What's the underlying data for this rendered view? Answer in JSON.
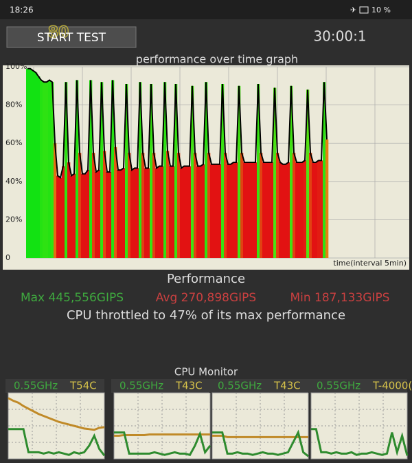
{
  "status_bar": {
    "time": "18:26",
    "battery": "10 %"
  },
  "controls": {
    "button": "START TEST",
    "badge": "80",
    "timer": "30:00:1"
  },
  "chart_data": {
    "type": "area-line",
    "title": "performance over time graph",
    "x_label": "time(interval 5min)",
    "color": "#000000",
    "values": [
      99,
      99,
      98,
      97,
      95,
      93,
      92,
      92,
      93,
      92,
      60,
      43,
      42,
      48,
      92,
      50,
      43,
      44,
      93,
      55,
      44,
      44,
      46,
      93,
      55,
      45,
      46,
      92,
      56,
      45,
      45,
      93,
      58,
      46,
      46,
      47,
      91,
      55,
      46,
      47,
      47,
      92,
      55,
      47,
      47,
      91,
      55,
      47,
      48,
      48,
      92,
      56,
      48,
      48,
      91,
      55,
      47,
      48,
      48,
      48,
      90,
      55,
      48,
      48,
      49,
      92,
      55,
      49,
      49,
      49,
      49,
      91,
      55,
      49,
      49,
      50,
      50,
      90,
      55,
      50,
      50,
      50,
      50,
      50,
      91,
      55,
      50,
      50,
      50,
      50,
      89,
      55,
      50,
      49,
      49,
      50,
      90,
      55,
      50,
      50,
      50,
      51,
      88,
      55,
      50,
      50,
      51,
      51,
      92,
      62
    ],
    "ylim": [
      0,
      100
    ],
    "yticks": [
      0,
      {
        "value": 20,
        "label": "20%"
      },
      {
        "value": 40,
        "label": "40%"
      },
      {
        "value": 60,
        "label": "60%"
      },
      {
        "value": 80,
        "label": "80%"
      },
      {
        "value": 100,
        "label": "100%"
      }
    ]
  },
  "stats": {
    "heading": "Performance",
    "max": "Max 445,556GIPS",
    "avg": "Avg 270,898GIPS",
    "min": "Min 187,133GIPS",
    "summary": "CPU throttled to 47% of its max performance"
  },
  "cpu_monitor": {
    "title": "CPU Monitor",
    "cores": [
      {
        "freq": "0.55GHz",
        "temp": "T54C",
        "temp_levels": [
          92,
          88,
          85,
          80,
          76,
          72,
          68,
          65,
          62,
          59,
          56,
          54,
          52,
          50,
          48,
          46,
          45,
          44,
          47,
          48
        ],
        "freq_levels": [
          45,
          45,
          45,
          45,
          10,
          10,
          10,
          8,
          10,
          8,
          10,
          8,
          6,
          10,
          8,
          10,
          20,
          35,
          15,
          5
        ]
      },
      {
        "freq": "0.55GHz",
        "temp": "T43C",
        "temp_levels": [
          35,
          35,
          36,
          36,
          36,
          36,
          36,
          37,
          37,
          37,
          37,
          37,
          37,
          37,
          37,
          37,
          37,
          37,
          37,
          37
        ],
        "freq_levels": [
          40,
          40,
          40,
          8,
          8,
          8,
          8,
          8,
          10,
          8,
          6,
          8,
          10,
          8,
          8,
          6,
          20,
          38,
          10,
          20
        ]
      },
      {
        "freq": "0.55GHz",
        "temp": "T43C",
        "temp_levels": [
          35,
          35,
          35,
          33,
          33,
          33,
          33,
          33,
          33,
          33,
          33,
          33,
          33,
          33,
          33,
          33,
          33,
          33,
          33,
          33
        ],
        "freq_levels": [
          40,
          40,
          40,
          8,
          8,
          10,
          8,
          8,
          6,
          8,
          10,
          8,
          8,
          6,
          8,
          10,
          25,
          40,
          10,
          4
        ]
      },
      {
        "freq": "0.55GHz",
        "temp": "T-4000(",
        "freq_levels": [
          45,
          45,
          10,
          10,
          8,
          10,
          8,
          8,
          10,
          6,
          8,
          8,
          10,
          8,
          6,
          8,
          40,
          10,
          35,
          5
        ]
      }
    ]
  }
}
